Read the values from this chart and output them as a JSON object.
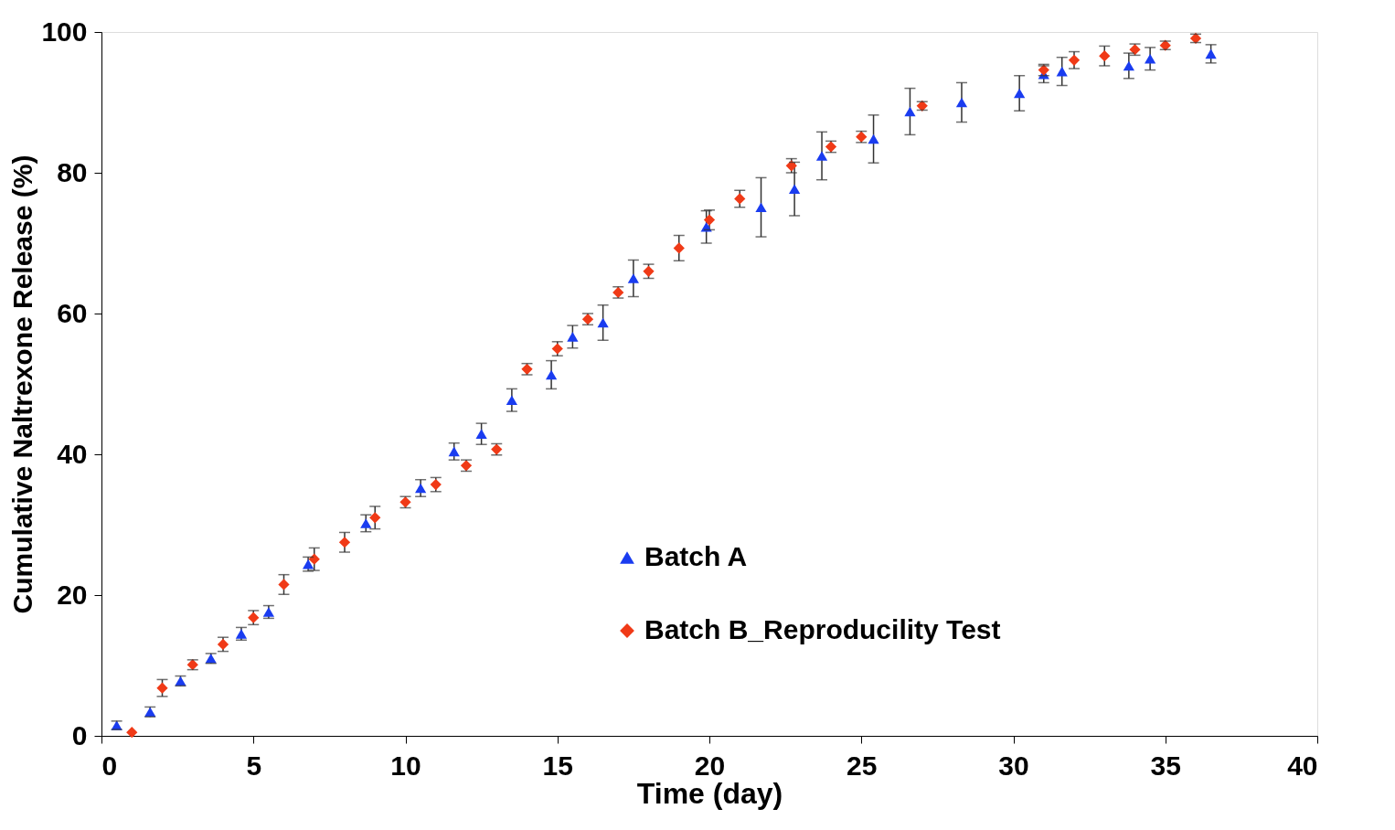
{
  "chart_data": {
    "type": "scatter",
    "xlabel": "Time (day)",
    "ylabel": "Cumulative Naltrexone Release (%)",
    "xlim": [
      0,
      40
    ],
    "xticks": [
      0,
      5,
      10,
      15,
      20,
      25,
      30,
      35,
      40
    ],
    "ylim": [
      0,
      100
    ],
    "yticks": [
      0,
      20,
      40,
      60,
      80,
      100
    ],
    "grid": false,
    "legend": "bottom right",
    "series": [
      {
        "name": "Batch A",
        "color": "#1a3cf0",
        "marker": "triangle",
        "x": [
          0.5,
          1.6,
          2.6,
          3.6,
          4.6,
          5.5,
          6.8,
          8.7,
          10.5,
          11.6,
          12.5,
          13.5,
          14.8,
          15.5,
          16.5,
          17.5,
          19.9,
          21.7,
          22.8,
          23.7,
          25.4,
          26.6,
          28.3,
          30.2,
          31,
          31.6,
          33.8,
          34.5,
          36.5
        ],
        "values": [
          1.5,
          3.4,
          7.8,
          11,
          14.5,
          17.6,
          24.4,
          30.2,
          35.2,
          40.4,
          42.9,
          47.7,
          51.3,
          56.7,
          58.7,
          65,
          72.3,
          75.1,
          77.7,
          82.4,
          84.8,
          88.7,
          90,
          91.3,
          94,
          94.4,
          95.2,
          96.2,
          96.9
        ],
        "errors": [
          0.6,
          0.7,
          0.7,
          0.7,
          0.9,
          0.9,
          1,
          1.2,
          1.2,
          1.2,
          1.5,
          1.6,
          2,
          1.6,
          2.5,
          2.6,
          2.3,
          4.2,
          3.8,
          3.4,
          3.4,
          3.3,
          2.8,
          2.5,
          1.2,
          2,
          1.8,
          1.6,
          1.3
        ]
      },
      {
        "name": "Batch B_Reproducility Test",
        "color": "#f03a17",
        "marker": "diamond",
        "x": [
          1,
          2,
          3,
          4,
          5,
          6,
          7,
          8,
          9,
          10,
          11,
          12,
          13,
          14,
          15,
          16,
          17,
          18,
          19,
          20,
          21,
          22.7,
          24,
          25,
          27,
          31,
          32,
          33,
          34,
          35,
          36
        ],
        "values": [
          0.5,
          6.8,
          10.1,
          13,
          16.8,
          21.5,
          25.1,
          27.5,
          31,
          33.2,
          35.7,
          38.4,
          40.7,
          52.1,
          55,
          59.2,
          63,
          66,
          69.3,
          73.3,
          76.3,
          81,
          83.7,
          85.1,
          89.5,
          94.6,
          96,
          96.6,
          97.5,
          98.1,
          99.1
        ],
        "errors": [
          null,
          1.2,
          0.7,
          1,
          1,
          1.4,
          1.6,
          1.4,
          1.6,
          0.8,
          1,
          0.8,
          0.8,
          0.8,
          1,
          0.8,
          0.8,
          1,
          1.8,
          1.4,
          1.2,
          1,
          0.8,
          0.8,
          0.6,
          0.8,
          1.2,
          1.4,
          0.8,
          0.6,
          0.6
        ]
      }
    ]
  }
}
